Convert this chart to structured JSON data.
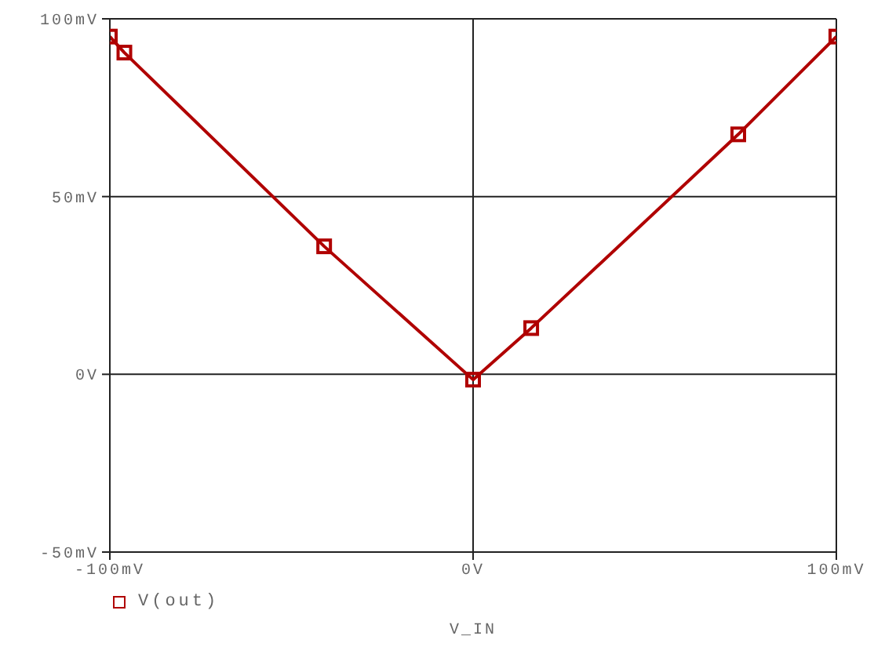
{
  "chart_data": {
    "type": "line",
    "xlabel": "V_IN",
    "x": [
      -100,
      -96,
      -41,
      0,
      16,
      73,
      100
    ],
    "series": [
      {
        "name": "V(out)",
        "color": "#b00000",
        "values": [
          95,
          90.5,
          36,
          -1.5,
          13,
          67.5,
          95
        ]
      }
    ],
    "xlim": [
      -100,
      100
    ],
    "xticks": [
      {
        "value": -100,
        "label": "-100mV"
      },
      {
        "value": 0,
        "label": "0V"
      },
      {
        "value": 100,
        "label": "100mV"
      }
    ],
    "ylim": [
      -50,
      100
    ],
    "yticks": [
      {
        "value": -50,
        "label": "-50mV"
      },
      {
        "value": 0,
        "label": "0V"
      },
      {
        "value": 50,
        "label": "50mV"
      },
      {
        "value": 100,
        "label": "100mV"
      }
    ],
    "grid": true,
    "legend": "bottom left",
    "marker": "square",
    "line_style": "solid"
  }
}
